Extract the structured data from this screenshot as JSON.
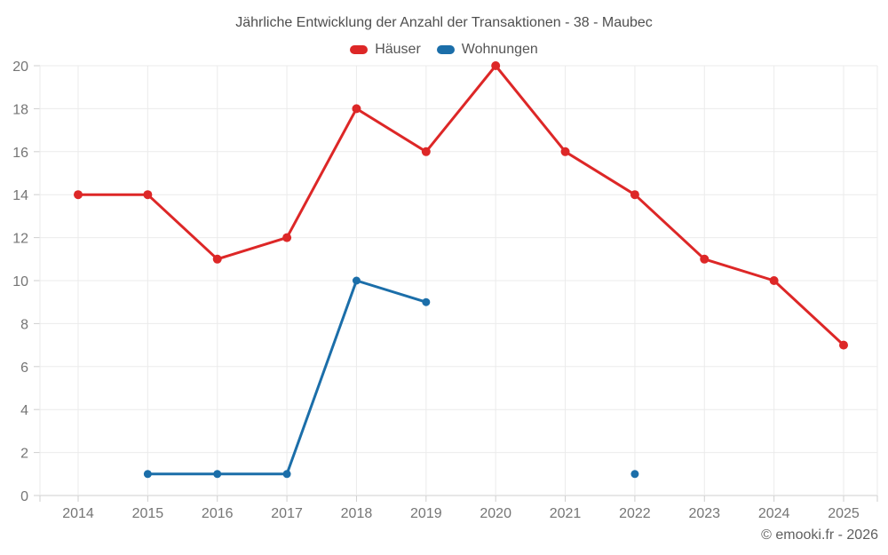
{
  "footer": {
    "copyright": "© emooki.fr - 2026"
  },
  "colors": {
    "haeuser": "#dd2727",
    "wohnungen": "#1b6ea9",
    "grid": "#ebebeb",
    "axis_line": "#cfcfcf",
    "tick": "#cfcfcf",
    "axis_text": "#757575"
  },
  "chart_data": {
    "type": "line",
    "title": "Jährliche Entwicklung der Anzahl der Transaktionen - 38 - Maubec",
    "categories": [
      "2014",
      "2015",
      "2016",
      "2017",
      "2018",
      "2019",
      "2020",
      "2021",
      "2022",
      "2023",
      "2024",
      "2025"
    ],
    "series": [
      {
        "name": "Häuser",
        "color": "#dd2727",
        "values": [
          14,
          14,
          11,
          12,
          18,
          16,
          20,
          16,
          14,
          11,
          10,
          7
        ]
      },
      {
        "name": "Wohnungen",
        "color": "#1b6ea9",
        "values": [
          null,
          1,
          1,
          1,
          10,
          9,
          null,
          null,
          1,
          null,
          null,
          null
        ]
      }
    ],
    "xlabel": "",
    "ylabel": "",
    "ylim": [
      0,
      20
    ],
    "ytick_step": 2,
    "grid": true,
    "legend_position": "top"
  }
}
